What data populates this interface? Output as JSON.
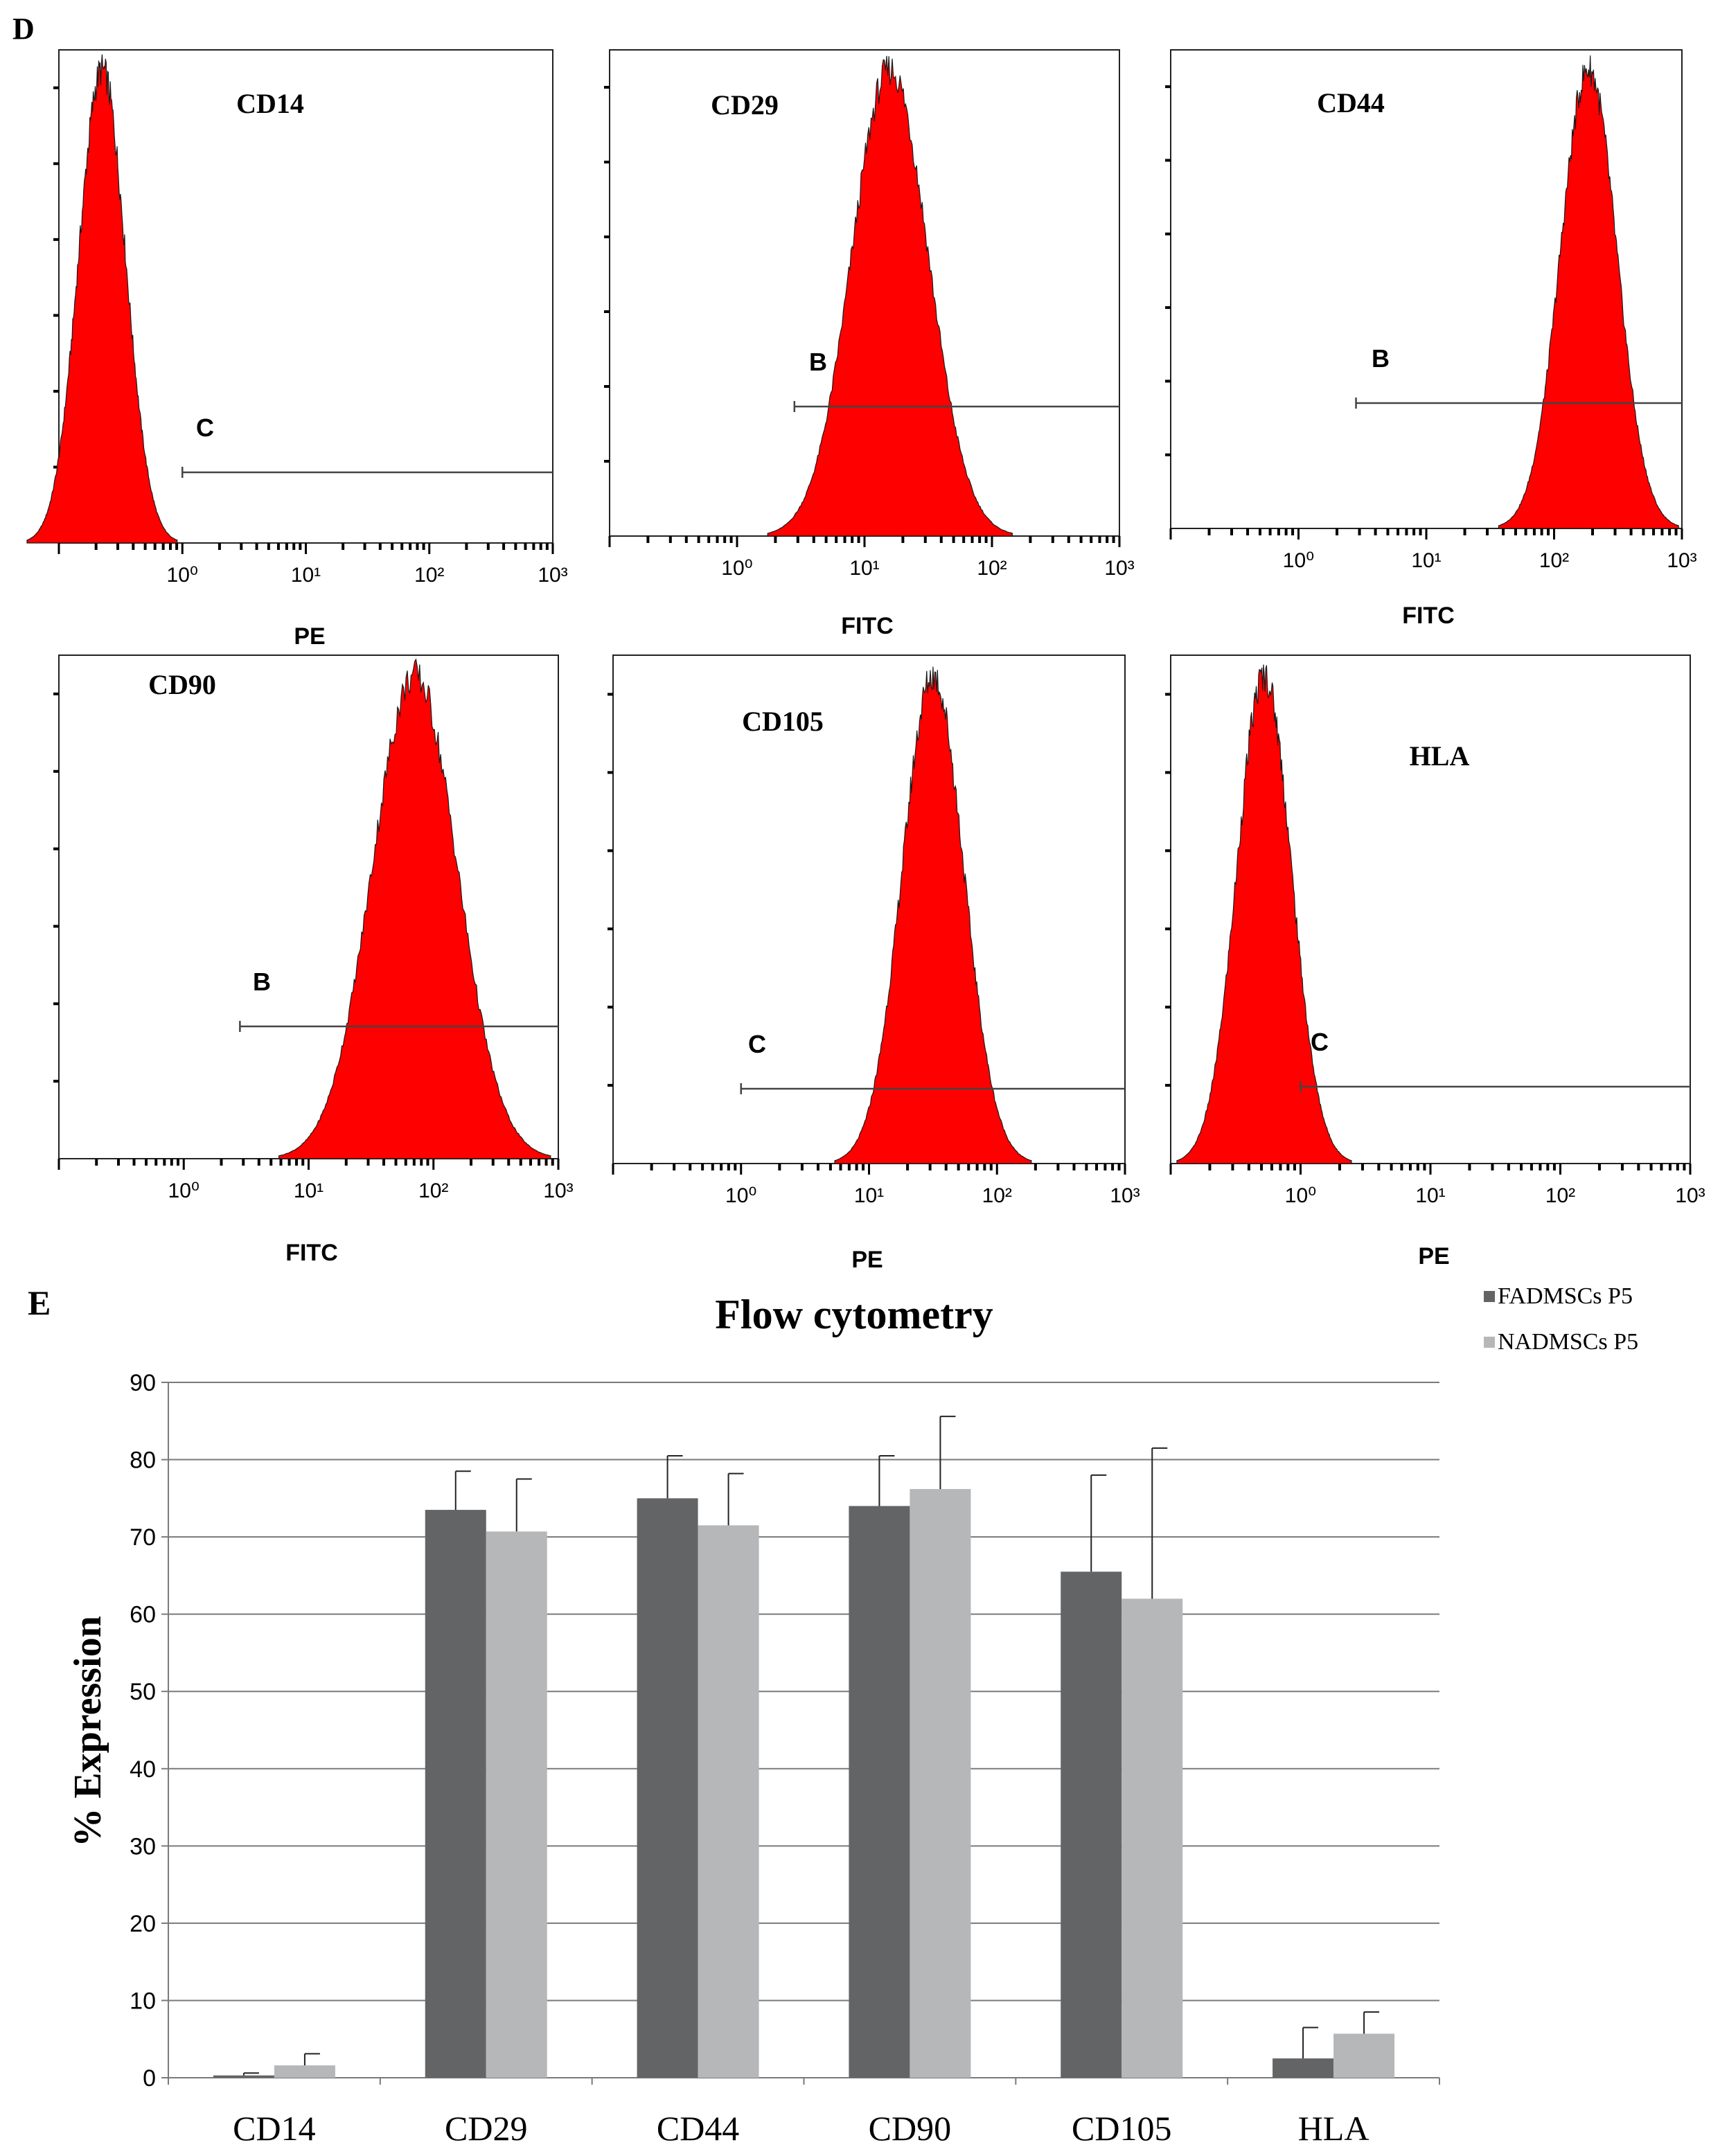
{
  "panel_d": {
    "label": "D",
    "histograms": [
      {
        "marker": "CD14",
        "axis_label": "PE",
        "gate_label": "C",
        "peak_log": -0.65,
        "width": 0.19,
        "gate_start_log": 0.0
      },
      {
        "marker": "CD29",
        "axis_label": "FITC",
        "gate_label": "B",
        "peak_log": 1.2,
        "width": 0.3,
        "gate_start_log": 0.45
      },
      {
        "marker": "CD44",
        "axis_label": "FITC",
        "gate_label": "B",
        "peak_log": 2.27,
        "width": 0.22,
        "gate_start_log": 0.45
      },
      {
        "marker": "CD90",
        "axis_label": "FITC",
        "gate_label": "B",
        "peak_log": 1.85,
        "width": 0.34,
        "gate_start_log": 0.45
      },
      {
        "marker": "CD105",
        "axis_label": "PE",
        "gate_label": "C",
        "peak_log": 1.5,
        "width": 0.24,
        "gate_start_log": 0.0
      },
      {
        "marker": "HLA",
        "axis_label": "PE",
        "gate_label": "C",
        "peak_log": -0.28,
        "width": 0.21,
        "gate_start_log": 0.0
      }
    ],
    "tick_labels": [
      "10⁰",
      "10¹",
      "10²",
      "10³"
    ]
  },
  "panel_e_label": "E",
  "chart_data": {
    "type": "bar",
    "title": "Flow cytometry",
    "ylabel": "%  Expression",
    "xlabel": "",
    "categories": [
      "CD14",
      "CD29",
      "CD44",
      "CD90",
      "CD105",
      "HLA"
    ],
    "series": [
      {
        "name": "FADMSCs P5",
        "color": "#636466",
        "values": [
          0.3,
          73.5,
          75,
          74,
          65.5,
          2.5
        ],
        "errors": [
          0.3,
          5,
          5.5,
          6.5,
          12.5,
          4
        ]
      },
      {
        "name": "NADMSCs P5",
        "color": "#b6b7b9",
        "values": [
          1.6,
          70.7,
          71.5,
          76.2,
          62,
          5.7
        ],
        "errors": [
          1.5,
          6.8,
          6.7,
          9.4,
          19.5,
          2.8
        ]
      }
    ],
    "ylim": [
      0,
      90
    ],
    "yticks": [
      0,
      10,
      20,
      30,
      40,
      50,
      60,
      70,
      80,
      90
    ],
    "grid": true,
    "legend_position": "top-right"
  }
}
